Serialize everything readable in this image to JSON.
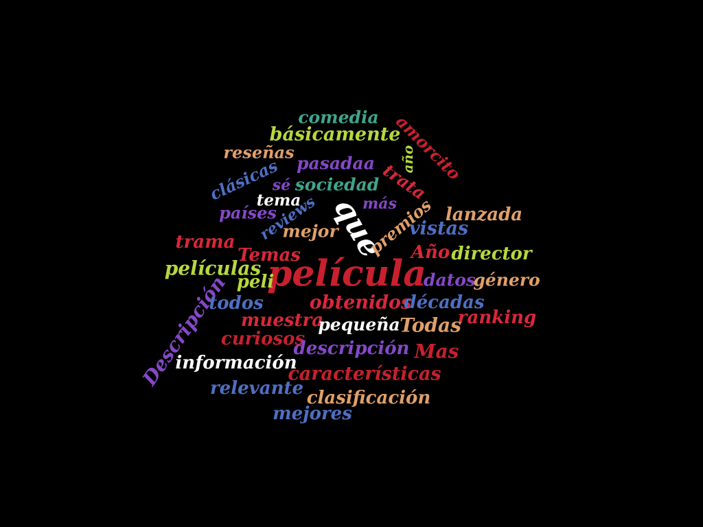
{
  "palette": {
    "red": "#d9273a",
    "crimson": "#c8202e",
    "teal": "#3fa58c",
    "lime": "#b7d83e",
    "peach": "#e0a06a",
    "blue": "#4f6fc4",
    "purple": "#8548c8",
    "white": "#ffffff"
  },
  "words": [
    {
      "id": "comedia",
      "text": "comedia",
      "color": "teal"
    },
    {
      "id": "basicamente",
      "text": "básicamente",
      "color": "lime"
    },
    {
      "id": "amorcito",
      "text": "amorcito",
      "color": "crimson"
    },
    {
      "id": "resenas",
      "text": "reseñas",
      "color": "peach"
    },
    {
      "id": "ano-lower",
      "text": "año",
      "color": "lime"
    },
    {
      "id": "pasadaa",
      "text": "pasadaa",
      "color": "purple"
    },
    {
      "id": "clasicas",
      "text": "clásicas",
      "color": "blue"
    },
    {
      "id": "trata",
      "text": "trata",
      "color": "red"
    },
    {
      "id": "se",
      "text": "sé",
      "color": "purple"
    },
    {
      "id": "sociedad",
      "text": "sociedad",
      "color": "teal"
    },
    {
      "id": "tema",
      "text": "tema",
      "color": "white"
    },
    {
      "id": "que",
      "text": "que",
      "color": "white"
    },
    {
      "id": "mas-lower",
      "text": "más",
      "color": "purple"
    },
    {
      "id": "paises",
      "text": "países",
      "color": "purple"
    },
    {
      "id": "reviews",
      "text": "reviews",
      "color": "blue"
    },
    {
      "id": "premios",
      "text": "premios",
      "color": "peach"
    },
    {
      "id": "lanzada",
      "text": "lanzada",
      "color": "peach"
    },
    {
      "id": "mejor",
      "text": "mejor",
      "color": "peach"
    },
    {
      "id": "vistas",
      "text": "vistas",
      "color": "blue"
    },
    {
      "id": "trama",
      "text": "trama",
      "color": "red"
    },
    {
      "id": "temas",
      "text": "Temas",
      "color": "red"
    },
    {
      "id": "ano-upper",
      "text": "Año",
      "color": "red"
    },
    {
      "id": "director",
      "text": "director",
      "color": "lime"
    },
    {
      "id": "peliculas",
      "text": "películas",
      "color": "lime"
    },
    {
      "id": "pelicula",
      "text": "película",
      "color": "crimson"
    },
    {
      "id": "peli",
      "text": "peli",
      "color": "lime"
    },
    {
      "id": "datos",
      "text": "datos",
      "color": "purple"
    },
    {
      "id": "genero",
      "text": "género",
      "color": "peach"
    },
    {
      "id": "descripcion-upper",
      "text": "Descripción",
      "color": "purple"
    },
    {
      "id": "todos",
      "text": "todos",
      "color": "blue"
    },
    {
      "id": "obtenidos",
      "text": "obtenidos",
      "color": "red"
    },
    {
      "id": "decadas",
      "text": "décadas",
      "color": "blue"
    },
    {
      "id": "muestra",
      "text": "muestra",
      "color": "red"
    },
    {
      "id": "ranking",
      "text": "ranking",
      "color": "red"
    },
    {
      "id": "pequena",
      "text": "pequeña",
      "color": "white"
    },
    {
      "id": "todas",
      "text": "Todas",
      "color": "peach"
    },
    {
      "id": "curiosos",
      "text": "curiosos",
      "color": "crimson"
    },
    {
      "id": "descripcion-lower",
      "text": "descripción",
      "color": "purple"
    },
    {
      "id": "mas-upper",
      "text": "Mas",
      "color": "crimson"
    },
    {
      "id": "informacion",
      "text": "información",
      "color": "white"
    },
    {
      "id": "caracteristicas",
      "text": "características",
      "color": "crimson"
    },
    {
      "id": "relevante",
      "text": "relevante",
      "color": "blue"
    },
    {
      "id": "clasificacion",
      "text": "clasificación",
      "color": "peach"
    },
    {
      "id": "mejores",
      "text": "mejores",
      "color": "blue"
    }
  ]
}
